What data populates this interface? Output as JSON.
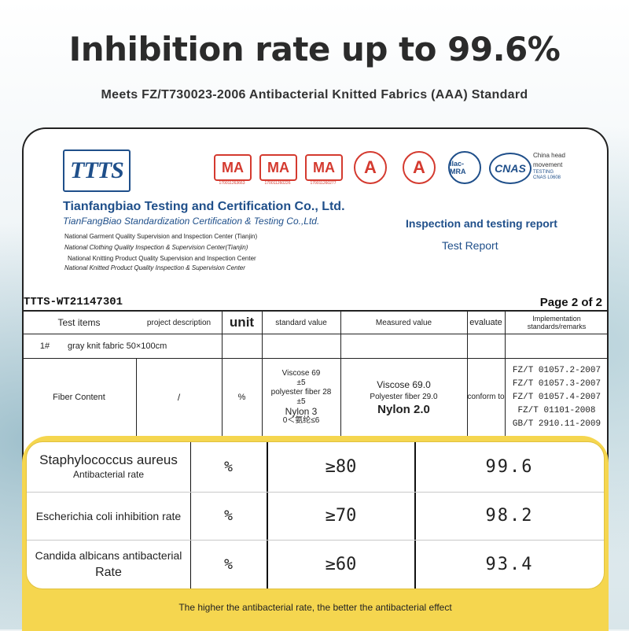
{
  "headline": "Inhibition rate up to 99.6%",
  "subheadline": "Meets FZ/T730023-2006 Antibacterial Knitted Fabrics (AAA) Standard",
  "report": {
    "logo": "TTTS",
    "certs": {
      "ma_label": "MA",
      "ma_numbers": [
        "170011263663",
        "170011260226",
        "170011260277"
      ],
      "ca_label": "A",
      "ilac_label": "ilac-MRA",
      "cnas_label": "CNAS",
      "cnas_text": [
        "China head",
        "movement"
      ],
      "cnas_sub": [
        "TESTING",
        "CNAS L0608"
      ]
    },
    "company_name": "Tianfangbiao Testing and Certification Co., Ltd.",
    "company_name_italic": "TianFangBiao Standardization Certification & Testing Co.,Ltd.",
    "centers": [
      "National Garment Quality Supervision and Inspection Center (Tianjin)",
      "National Clothing Quality Inspection & Supervision Center(Tianjin)",
      "National Knitting Product Quality Supervision and Inspection Center",
      "National Knitted Product Quality Inspection & Supervision Center"
    ],
    "report_title": "Inspection and testing report",
    "report_subtitle": "Test Report",
    "report_number": "TTTS-WT21147301",
    "page_label": "Page 2 of 2",
    "table": {
      "headers": {
        "test_items": "Test items",
        "project_description": "project description",
        "unit": "unit",
        "standard_value": "standard value",
        "measured_value": "Measured value",
        "evaluate": "evaluate",
        "implementation": "Implementation standards/remarks"
      },
      "sample_no": "1#",
      "sample_desc": "gray knit fabric 50×100cm",
      "fiber": {
        "item": "Fiber Content",
        "description": "/",
        "unit": "%",
        "standard_lines": [
          "Viscose 69",
          "±5",
          "polyester fiber 28",
          "±5",
          "Nylon 3",
          "0＜氨纶≤6"
        ],
        "measured_lines": [
          "Viscose 69.0",
          "Polyester fiber 29.0",
          "Nylon 2.0"
        ],
        "evaluate": "conform to",
        "standards": [
          "FZ/T 01057.2-2007",
          "FZ/T 01057.3-2007",
          "FZ/T 01057.4-2007",
          "FZ/T 01101-2008",
          "GB/T 2910.11-2009"
        ]
      }
    }
  },
  "results": [
    {
      "name_main": "Staphylococcus aureus",
      "name_sub": "Antibacterial rate",
      "unit": "%",
      "standard": "≥80",
      "value": "99.6"
    },
    {
      "name_main": "Escherichia coli inhibition rate",
      "name_sub": "",
      "unit": "%",
      "standard": "≥70",
      "value": "98.2"
    },
    {
      "name_main": "Candida albicans antibacterial",
      "name_sub": "Rate",
      "unit": "%",
      "standard": "≥60",
      "value": "93.4"
    }
  ],
  "footer": "The higher the antibacterial rate, the better the antibacterial effect",
  "colors": {
    "accent_yellow": "#f5d64f",
    "brand_blue": "#1f4f8a",
    "cert_red": "#d43a2f"
  }
}
